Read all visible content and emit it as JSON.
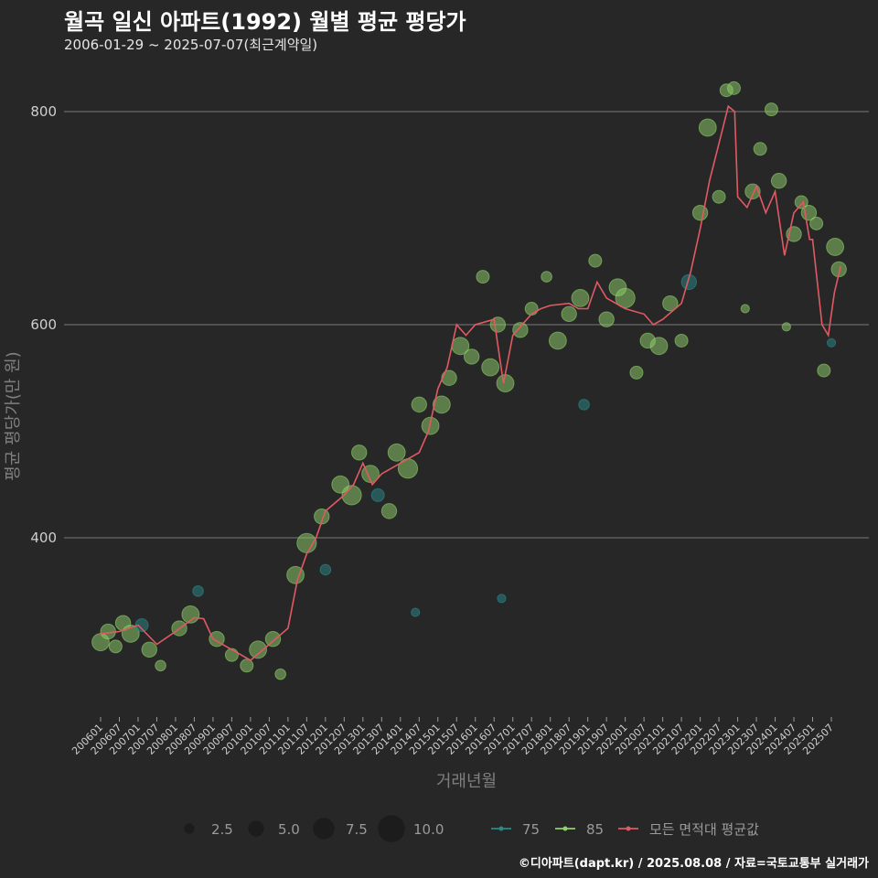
{
  "chart_data": {
    "type": "scatter",
    "title": "월곡 일신 아파트(1992) 월별 평균 평당가",
    "subtitle": "2006-01-29 ~ 2025-07-07(최근계약일)",
    "xlabel": "거래년월",
    "ylabel": "평균 평당가(만 원)",
    "ylim": [
      240,
      820
    ],
    "yticks": [
      400,
      600,
      800
    ],
    "grid": true,
    "x_tick_labels": [
      "200601",
      "200607",
      "200701",
      "200707",
      "200801",
      "200807",
      "200901",
      "200907",
      "201001",
      "201007",
      "201101",
      "201107",
      "201201",
      "201207",
      "201301",
      "201307",
      "201401",
      "201407",
      "201501",
      "201507",
      "201601",
      "201607",
      "201701",
      "201707",
      "201801",
      "201807",
      "201901",
      "201907",
      "202001",
      "202007",
      "202101",
      "202107",
      "202201",
      "202207",
      "202301",
      "202307",
      "202401",
      "202407",
      "202501",
      "202507"
    ],
    "size_legend": [
      {
        "label": "2.5",
        "value": 2.5
      },
      {
        "label": "5.0",
        "value": 5.0
      },
      {
        "label": "7.5",
        "value": 7.5
      },
      {
        "label": "10.0",
        "value": 10.0
      }
    ],
    "series": [
      {
        "name": "75",
        "color": "#2a8a8a",
        "kind": "points"
      },
      {
        "name": "85",
        "color": "#8fd16a",
        "kind": "points"
      },
      {
        "name": "모든 면적대 평균값",
        "color": "#e05a63",
        "kind": "line"
      }
    ],
    "average_line": [
      [
        2006.0,
        310
      ],
      [
        2006.5,
        312
      ],
      [
        2007.0,
        318
      ],
      [
        2007.5,
        300
      ],
      [
        2008.0,
        312
      ],
      [
        2008.5,
        325
      ],
      [
        2008.75,
        324
      ],
      [
        2009.0,
        305
      ],
      [
        2009.5,
        295
      ],
      [
        2009.75,
        290
      ],
      [
        2010.0,
        285
      ],
      [
        2010.5,
        300
      ],
      [
        2011.0,
        315
      ],
      [
        2011.25,
        360
      ],
      [
        2011.5,
        385
      ],
      [
        2011.75,
        400
      ],
      [
        2012.0,
        425
      ],
      [
        2012.5,
        440
      ],
      [
        2012.75,
        450
      ],
      [
        2013.0,
        470
      ],
      [
        2013.25,
        450
      ],
      [
        2013.5,
        460
      ],
      [
        2014.0,
        470
      ],
      [
        2014.5,
        480
      ],
      [
        2014.75,
        500
      ],
      [
        2015.0,
        540
      ],
      [
        2015.25,
        560
      ],
      [
        2015.5,
        600
      ],
      [
        2015.75,
        590
      ],
      [
        2016.0,
        600
      ],
      [
        2016.5,
        605
      ],
      [
        2016.75,
        545
      ],
      [
        2017.0,
        590
      ],
      [
        2017.5,
        610
      ],
      [
        2017.75,
        615
      ],
      [
        2018.0,
        618
      ],
      [
        2018.5,
        620
      ],
      [
        2018.75,
        615
      ],
      [
        2019.0,
        615
      ],
      [
        2019.25,
        640
      ],
      [
        2019.5,
        625
      ],
      [
        2019.75,
        620
      ],
      [
        2020.0,
        615
      ],
      [
        2020.5,
        610
      ],
      [
        2020.75,
        600
      ],
      [
        2021.0,
        605
      ],
      [
        2021.5,
        620
      ],
      [
        2021.75,
        650
      ],
      [
        2022.0,
        690
      ],
      [
        2022.25,
        735
      ],
      [
        2022.5,
        770
      ],
      [
        2022.75,
        805
      ],
      [
        2022.92,
        800
      ],
      [
        2023.0,
        720
      ],
      [
        2023.25,
        710
      ],
      [
        2023.5,
        730
      ],
      [
        2023.75,
        705
      ],
      [
        2024.0,
        725
      ],
      [
        2024.25,
        665
      ],
      [
        2024.5,
        705
      ],
      [
        2024.75,
        715
      ],
      [
        2024.92,
        680
      ],
      [
        2025.0,
        680
      ],
      [
        2025.25,
        600
      ],
      [
        2025.42,
        590
      ],
      [
        2025.58,
        630
      ],
      [
        2025.75,
        655
      ]
    ],
    "points": [
      {
        "year": 2006.0,
        "value": 302,
        "size": 6,
        "series": "85"
      },
      {
        "year": 2006.2,
        "value": 312,
        "size": 5,
        "series": "85"
      },
      {
        "year": 2006.4,
        "value": 298,
        "size": 4,
        "series": "85"
      },
      {
        "year": 2006.6,
        "value": 320,
        "size": 5,
        "series": "85"
      },
      {
        "year": 2006.8,
        "value": 310,
        "size": 6,
        "series": "85"
      },
      {
        "year": 2007.1,
        "value": 318,
        "size": 4,
        "series": "75"
      },
      {
        "year": 2007.3,
        "value": 295,
        "size": 5,
        "series": "85"
      },
      {
        "year": 2007.6,
        "value": 280,
        "size": 3,
        "series": "85"
      },
      {
        "year": 2008.1,
        "value": 315,
        "size": 5,
        "series": "85"
      },
      {
        "year": 2008.4,
        "value": 328,
        "size": 6,
        "series": "85"
      },
      {
        "year": 2008.6,
        "value": 350,
        "size": 3,
        "series": "75"
      },
      {
        "year": 2009.1,
        "value": 305,
        "size": 5,
        "series": "85"
      },
      {
        "year": 2009.5,
        "value": 290,
        "size": 4,
        "series": "85"
      },
      {
        "year": 2009.9,
        "value": 280,
        "size": 4,
        "series": "85"
      },
      {
        "year": 2010.2,
        "value": 295,
        "size": 6,
        "series": "85"
      },
      {
        "year": 2010.6,
        "value": 305,
        "size": 5,
        "series": "85"
      },
      {
        "year": 2010.8,
        "value": 272,
        "size": 3,
        "series": "85"
      },
      {
        "year": 2011.2,
        "value": 365,
        "size": 6,
        "series": "85"
      },
      {
        "year": 2011.5,
        "value": 395,
        "size": 7,
        "series": "85"
      },
      {
        "year": 2011.9,
        "value": 420,
        "size": 5,
        "series": "85"
      },
      {
        "year": 2012.0,
        "value": 370,
        "size": 3,
        "series": "75"
      },
      {
        "year": 2012.4,
        "value": 450,
        "size": 6,
        "series": "85"
      },
      {
        "year": 2012.7,
        "value": 440,
        "size": 7,
        "series": "85"
      },
      {
        "year": 2012.9,
        "value": 480,
        "size": 5,
        "series": "85"
      },
      {
        "year": 2013.2,
        "value": 460,
        "size": 6,
        "series": "85"
      },
      {
        "year": 2013.4,
        "value": 440,
        "size": 4,
        "series": "75"
      },
      {
        "year": 2013.7,
        "value": 425,
        "size": 5,
        "series": "85"
      },
      {
        "year": 2013.9,
        "value": 480,
        "size": 6,
        "series": "85"
      },
      {
        "year": 2014.2,
        "value": 465,
        "size": 7,
        "series": "85"
      },
      {
        "year": 2014.5,
        "value": 525,
        "size": 5,
        "series": "85"
      },
      {
        "year": 2014.8,
        "value": 505,
        "size": 6,
        "series": "85"
      },
      {
        "year": 2014.4,
        "value": 330,
        "size": 2,
        "series": "75"
      },
      {
        "year": 2015.1,
        "value": 525,
        "size": 6,
        "series": "85"
      },
      {
        "year": 2015.3,
        "value": 550,
        "size": 5,
        "series": "85"
      },
      {
        "year": 2015.6,
        "value": 580,
        "size": 6,
        "series": "85"
      },
      {
        "year": 2015.9,
        "value": 570,
        "size": 5,
        "series": "85"
      },
      {
        "year": 2016.2,
        "value": 645,
        "size": 4,
        "series": "85"
      },
      {
        "year": 2016.4,
        "value": 560,
        "size": 6,
        "series": "85"
      },
      {
        "year": 2016.6,
        "value": 600,
        "size": 5,
        "series": "85"
      },
      {
        "year": 2016.8,
        "value": 545,
        "size": 6,
        "series": "85"
      },
      {
        "year": 2016.7,
        "value": 343,
        "size": 2,
        "series": "75"
      },
      {
        "year": 2017.2,
        "value": 595,
        "size": 5,
        "series": "85"
      },
      {
        "year": 2017.5,
        "value": 615,
        "size": 4,
        "series": "85"
      },
      {
        "year": 2017.9,
        "value": 645,
        "size": 3,
        "series": "85"
      },
      {
        "year": 2018.2,
        "value": 585,
        "size": 6,
        "series": "85"
      },
      {
        "year": 2018.5,
        "value": 610,
        "size": 5,
        "series": "85"
      },
      {
        "year": 2018.8,
        "value": 625,
        "size": 6,
        "series": "85"
      },
      {
        "year": 2018.9,
        "value": 525,
        "size": 3,
        "series": "75"
      },
      {
        "year": 2019.2,
        "value": 660,
        "size": 4,
        "series": "85"
      },
      {
        "year": 2019.5,
        "value": 605,
        "size": 5,
        "series": "85"
      },
      {
        "year": 2019.8,
        "value": 635,
        "size": 6,
        "series": "85"
      },
      {
        "year": 2020.0,
        "value": 625,
        "size": 7,
        "series": "85"
      },
      {
        "year": 2020.3,
        "value": 555,
        "size": 4,
        "series": "85"
      },
      {
        "year": 2020.6,
        "value": 585,
        "size": 5,
        "series": "85"
      },
      {
        "year": 2020.9,
        "value": 580,
        "size": 6,
        "series": "85"
      },
      {
        "year": 2021.2,
        "value": 620,
        "size": 5,
        "series": "85"
      },
      {
        "year": 2021.5,
        "value": 585,
        "size": 4,
        "series": "85"
      },
      {
        "year": 2021.7,
        "value": 640,
        "size": 5,
        "series": "75"
      },
      {
        "year": 2022.0,
        "value": 705,
        "size": 5,
        "series": "85"
      },
      {
        "year": 2022.2,
        "value": 785,
        "size": 6,
        "series": "85"
      },
      {
        "year": 2022.5,
        "value": 720,
        "size": 4,
        "series": "85"
      },
      {
        "year": 2022.7,
        "value": 820,
        "size": 4,
        "series": "85"
      },
      {
        "year": 2022.9,
        "value": 822,
        "size": 4,
        "series": "85"
      },
      {
        "year": 2023.2,
        "value": 615,
        "size": 2,
        "series": "85"
      },
      {
        "year": 2023.4,
        "value": 725,
        "size": 5,
        "series": "85"
      },
      {
        "year": 2023.6,
        "value": 765,
        "size": 4,
        "series": "85"
      },
      {
        "year": 2023.9,
        "value": 802,
        "size": 4,
        "series": "85"
      },
      {
        "year": 2024.1,
        "value": 735,
        "size": 5,
        "series": "85"
      },
      {
        "year": 2024.3,
        "value": 598,
        "size": 2,
        "series": "85"
      },
      {
        "year": 2024.5,
        "value": 685,
        "size": 5,
        "series": "85"
      },
      {
        "year": 2024.7,
        "value": 715,
        "size": 4,
        "series": "85"
      },
      {
        "year": 2024.9,
        "value": 705,
        "size": 5,
        "series": "85"
      },
      {
        "year": 2025.1,
        "value": 695,
        "size": 4,
        "series": "85"
      },
      {
        "year": 2025.3,
        "value": 557,
        "size": 4,
        "series": "85"
      },
      {
        "year": 2025.6,
        "value": 673,
        "size": 6,
        "series": "85"
      },
      {
        "year": 2025.7,
        "value": 652,
        "size": 5,
        "series": "85"
      },
      {
        "year": 2025.5,
        "value": 583,
        "size": 2,
        "series": "75"
      }
    ]
  },
  "credit": "©디아파트(dapt.kr) / 2025.08.08 / 자료=국토교통부 실거래가"
}
